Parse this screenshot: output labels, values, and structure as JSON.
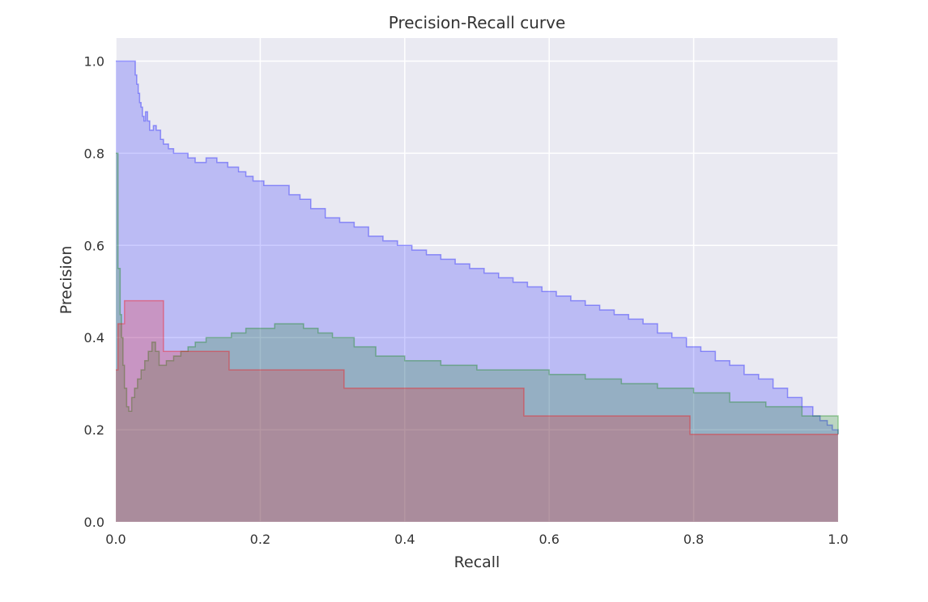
{
  "chart_data": {
    "type": "area",
    "title": "Precision-Recall curve",
    "xlabel": "Recall",
    "ylabel": "Precision",
    "xlim": [
      0.0,
      1.0
    ],
    "ylim": [
      0.0,
      1.05
    ],
    "xticks": [
      "0.0",
      "0.2",
      "0.4",
      "0.6",
      "0.8",
      "1.0"
    ],
    "yticks": [
      "0.0",
      "0.2",
      "0.4",
      "0.6",
      "0.8",
      "1.0"
    ],
    "grid": true,
    "legend": "none",
    "style": "step-post filled curves on grey background",
    "series": [
      {
        "color": "#0000ff",
        "step": true,
        "x": [
          0.0,
          0.027,
          0.029,
          0.031,
          0.033,
          0.035,
          0.037,
          0.039,
          0.041,
          0.044,
          0.047,
          0.052,
          0.056,
          0.062,
          0.066,
          0.073,
          0.08,
          0.088,
          0.1,
          0.11,
          0.125,
          0.14,
          0.155,
          0.17,
          0.18,
          0.19,
          0.205,
          0.22,
          0.24,
          0.255,
          0.27,
          0.29,
          0.31,
          0.33,
          0.35,
          0.37,
          0.39,
          0.41,
          0.43,
          0.45,
          0.47,
          0.49,
          0.51,
          0.53,
          0.55,
          0.57,
          0.59,
          0.61,
          0.63,
          0.65,
          0.67,
          0.69,
          0.71,
          0.73,
          0.75,
          0.77,
          0.79,
          0.81,
          0.83,
          0.85,
          0.87,
          0.89,
          0.91,
          0.93,
          0.95,
          0.965,
          0.975,
          0.985,
          0.992,
          1.0
        ],
        "y": [
          1.0,
          0.97,
          0.95,
          0.93,
          0.91,
          0.9,
          0.88,
          0.87,
          0.89,
          0.87,
          0.85,
          0.86,
          0.85,
          0.83,
          0.82,
          0.81,
          0.8,
          0.8,
          0.79,
          0.78,
          0.79,
          0.78,
          0.77,
          0.76,
          0.75,
          0.74,
          0.73,
          0.73,
          0.71,
          0.7,
          0.68,
          0.66,
          0.65,
          0.64,
          0.62,
          0.61,
          0.6,
          0.59,
          0.58,
          0.57,
          0.56,
          0.55,
          0.54,
          0.53,
          0.52,
          0.51,
          0.5,
          0.49,
          0.48,
          0.47,
          0.46,
          0.45,
          0.44,
          0.43,
          0.41,
          0.4,
          0.38,
          0.37,
          0.35,
          0.34,
          0.32,
          0.31,
          0.29,
          0.27,
          0.25,
          0.23,
          0.22,
          0.21,
          0.2,
          0.19
        ]
      },
      {
        "color": "#008000",
        "step": true,
        "x": [
          0.0,
          0.003,
          0.006,
          0.008,
          0.01,
          0.012,
          0.015,
          0.018,
          0.022,
          0.026,
          0.03,
          0.035,
          0.04,
          0.045,
          0.05,
          0.055,
          0.06,
          0.065,
          0.07,
          0.08,
          0.09,
          0.1,
          0.11,
          0.125,
          0.14,
          0.16,
          0.18,
          0.2,
          0.22,
          0.24,
          0.26,
          0.28,
          0.3,
          0.33,
          0.36,
          0.4,
          0.45,
          0.5,
          0.55,
          0.6,
          0.65,
          0.7,
          0.75,
          0.8,
          0.85,
          0.9,
          0.95,
          1.0
        ],
        "y": [
          0.8,
          0.55,
          0.45,
          0.4,
          0.34,
          0.29,
          0.25,
          0.24,
          0.27,
          0.29,
          0.31,
          0.33,
          0.35,
          0.37,
          0.39,
          0.37,
          0.34,
          0.34,
          0.35,
          0.36,
          0.37,
          0.38,
          0.39,
          0.4,
          0.4,
          0.41,
          0.42,
          0.42,
          0.43,
          0.43,
          0.42,
          0.41,
          0.4,
          0.38,
          0.36,
          0.35,
          0.34,
          0.33,
          0.33,
          0.32,
          0.31,
          0.3,
          0.29,
          0.28,
          0.26,
          0.25,
          0.23,
          0.19
        ]
      },
      {
        "color": "#ff0000",
        "step": true,
        "x": [
          0.0,
          0.003,
          0.012,
          0.066,
          0.157,
          0.316,
          0.565,
          0.795,
          1.0
        ],
        "y": [
          0.33,
          0.43,
          0.48,
          0.37,
          0.33,
          0.29,
          0.23,
          0.19,
          0.19
        ]
      }
    ]
  }
}
